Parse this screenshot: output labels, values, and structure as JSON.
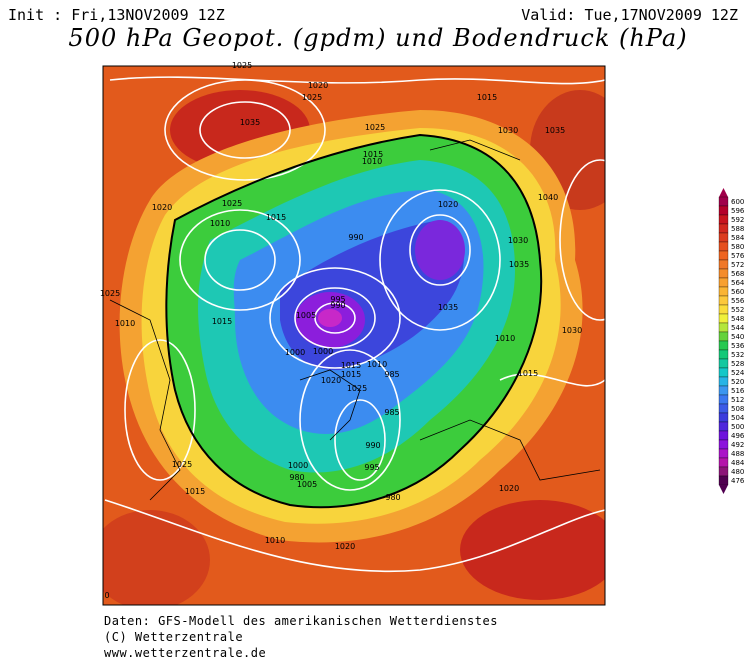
{
  "header": {
    "init": "Init : Fri,13NOV2009 12Z",
    "valid": "Valid: Tue,17NOV2009 12Z",
    "title": "500 hPa Geopot. (gpdm) und Bodendruck (hPa)"
  },
  "isobar_labels": [
    1025,
    1020,
    1025,
    1035,
    1025,
    1015,
    1030,
    1035,
    1015,
    1010,
    990,
    1020,
    1040,
    1030,
    1035,
    1030,
    1015,
    1010,
    1000,
    985,
    980,
    1015,
    1020,
    995,
    990,
    1005,
    1000,
    1025,
    1010,
    1015,
    1000,
    985,
    995,
    990,
    980,
    1005,
    1025,
    1015,
    1020,
    1010,
    1035,
    1025,
    1010,
    1015,
    1020,
    1025,
    1015,
    1010,
    1020,
    0
  ],
  "colorbar": {
    "ticks": [
      600,
      596,
      592,
      588,
      584,
      580,
      576,
      572,
      568,
      564,
      560,
      556,
      552,
      548,
      544,
      540,
      536,
      532,
      528,
      524,
      520,
      516,
      512,
      508,
      504,
      500,
      496,
      492,
      488,
      484,
      480,
      476
    ],
    "colors": [
      "#a0004a",
      "#b4002a",
      "#c8141e",
      "#d2281e",
      "#dc3c1e",
      "#e6501e",
      "#ee6420",
      "#f07828",
      "#f48c2c",
      "#f8a030",
      "#fab434",
      "#fcc83c",
      "#fadc3c",
      "#f0f03c",
      "#b4e63c",
      "#64d23c",
      "#28c850",
      "#14c878",
      "#14c8a0",
      "#14c8c8",
      "#28b4e6",
      "#3c96f0",
      "#3c78f0",
      "#3c5ae6",
      "#3c3cdc",
      "#5028dc",
      "#6e14dc",
      "#8c14dc",
      "#aa14c8",
      "#b414aa",
      "#8c1478",
      "#500050"
    ]
  },
  "footer": [
    "Daten: GFS-Modell des amerikanischen Wetterdienstes",
    "(C) Wetterzentrale",
    "www.wetterzentrale.de"
  ]
}
